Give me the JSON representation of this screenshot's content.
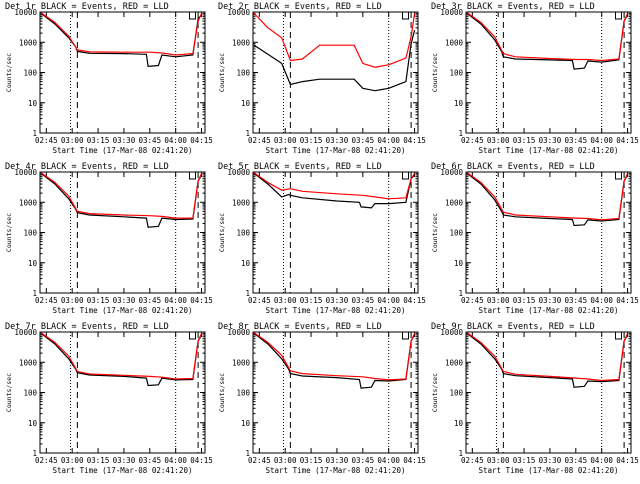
{
  "chart_data": [
    {
      "type": "line",
      "title": "Det 1r BLACK = Events, RED = LLD",
      "xlabel": "Start Time (17-Mar-08 02:41:20)",
      "ylabel": "Counts/sec",
      "x_ticks": [
        "02:45",
        "03:00",
        "03:15",
        "03:30",
        "03:45",
        "04:00",
        "04:15"
      ],
      "y_ticks": [
        "1",
        "10",
        "100",
        "1000",
        "10000"
      ],
      "ylim": [
        1,
        10000
      ],
      "log_y": true,
      "markers": {
        "dotted": [
          "02:59",
          "04:00"
        ],
        "dashed": [
          "03:03",
          "04:13"
        ],
        "flag": "04:08"
      },
      "series": [
        {
          "name": "BLACK",
          "color": "#000000",
          "x": [
            "02:42",
            "02:50",
            "02:58",
            "03:02",
            "03:03",
            "03:10",
            "03:30",
            "03:43",
            "03:44",
            "03:50",
            "03:52",
            "04:00",
            "04:10",
            "04:13",
            "04:15"
          ],
          "values": [
            9000,
            4000,
            1400,
            700,
            500,
            430,
            420,
            400,
            160,
            170,
            380,
            330,
            380,
            6000,
            8000
          ]
        },
        {
          "name": "RED",
          "color": "#ff0000",
          "x": [
            "02:42",
            "02:50",
            "02:58",
            "03:03",
            "03:10",
            "03:30",
            "03:45",
            "03:52",
            "04:00",
            "04:10",
            "04:13",
            "04:15"
          ],
          "values": [
            9500,
            4500,
            1600,
            560,
            480,
            470,
            470,
            440,
            380,
            420,
            5000,
            9000
          ]
        }
      ]
    },
    {
      "type": "line",
      "title": "Det 2r BLACK = Events, RED = LLD",
      "xlabel": "Start Time (17-Mar-08 02:41:20)",
      "ylabel": "Counts/sec",
      "x_ticks": [
        "02:45",
        "03:00",
        "03:15",
        "03:30",
        "03:45",
        "04:00",
        "04:15"
      ],
      "y_ticks": [
        "1",
        "10",
        "100",
        "1000",
        "10000"
      ],
      "ylim": [
        1,
        10000
      ],
      "log_y": true,
      "markers": {
        "dotted": [
          "02:59",
          "04:00"
        ],
        "dashed": [
          "03:03",
          "04:13"
        ],
        "flag": "04:08"
      },
      "series": [
        {
          "name": "BLACK",
          "color": "#000000",
          "x": [
            "02:42",
            "02:50",
            "02:58",
            "03:03",
            "03:10",
            "03:20",
            "03:40",
            "03:45",
            "03:52",
            "04:00",
            "04:10",
            "04:13",
            "04:15"
          ],
          "values": [
            800,
            400,
            200,
            40,
            50,
            60,
            60,
            30,
            25,
            30,
            50,
            900,
            2500
          ]
        },
        {
          "name": "RED",
          "color": "#ff0000",
          "x": [
            "02:42",
            "02:50",
            "02:58",
            "03:03",
            "03:10",
            "03:20",
            "03:40",
            "03:45",
            "03:52",
            "04:00",
            "04:10",
            "04:13",
            "04:15"
          ],
          "values": [
            9000,
            3000,
            1400,
            250,
            280,
            800,
            800,
            200,
            150,
            180,
            300,
            1500,
            9000
          ]
        }
      ]
    },
    {
      "type": "line",
      "title": "Det 3r BLACK = Events, RED = LLD",
      "xlabel": "Start Time (17-Mar-08 02:41:20)",
      "ylabel": "Counts/sec",
      "x_ticks": [
        "02:45",
        "03:00",
        "03:15",
        "03:30",
        "03:45",
        "04:00",
        "04:15"
      ],
      "y_ticks": [
        "1",
        "10",
        "100",
        "1000",
        "10000"
      ],
      "ylim": [
        1,
        10000
      ],
      "log_y": true,
      "markers": {
        "dotted": [
          "02:59",
          "04:00"
        ],
        "dashed": [
          "03:03",
          "04:13"
        ],
        "flag": "04:08"
      },
      "series": [
        {
          "name": "BLACK",
          "color": "#000000",
          "x": [
            "02:42",
            "02:50",
            "02:58",
            "03:02",
            "03:03",
            "03:10",
            "03:30",
            "03:43",
            "03:44",
            "03:50",
            "03:52",
            "04:00",
            "04:10",
            "04:13",
            "04:15"
          ],
          "values": [
            9000,
            4000,
            1200,
            500,
            330,
            280,
            260,
            250,
            130,
            140,
            240,
            220,
            260,
            5000,
            8000
          ]
        },
        {
          "name": "RED",
          "color": "#ff0000",
          "x": [
            "02:42",
            "02:50",
            "02:58",
            "03:03",
            "03:10",
            "03:30",
            "03:45",
            "03:52",
            "04:00",
            "04:10",
            "04:13",
            "04:15"
          ],
          "values": [
            9500,
            4500,
            1500,
            420,
            330,
            290,
            270,
            270,
            250,
            280,
            5000,
            9000
          ]
        }
      ]
    },
    {
      "type": "line",
      "title": "Det 4r BLACK = Events, RED = LLD",
      "xlabel": "Start Time (17-Mar-08 02:41:20)",
      "ylabel": "Counts/sec",
      "x_ticks": [
        "02:45",
        "03:00",
        "03:15",
        "03:30",
        "03:45",
        "04:00",
        "04:15"
      ],
      "y_ticks": [
        "1",
        "10",
        "100",
        "1000",
        "10000"
      ],
      "ylim": [
        1,
        10000
      ],
      "log_y": true,
      "markers": {
        "dotted": [
          "02:59",
          "04:00"
        ],
        "dashed": [
          "03:03",
          "04:13"
        ],
        "flag": "04:08"
      },
      "series": [
        {
          "name": "BLACK",
          "color": "#000000",
          "x": [
            "02:42",
            "02:50",
            "02:58",
            "03:02",
            "03:03",
            "03:10",
            "03:30",
            "03:43",
            "03:44",
            "03:50",
            "03:52",
            "04:00",
            "04:10",
            "04:13",
            "04:15"
          ],
          "values": [
            9000,
            4000,
            1300,
            600,
            450,
            380,
            330,
            300,
            150,
            160,
            300,
            270,
            280,
            5000,
            8000
          ]
        },
        {
          "name": "RED",
          "color": "#ff0000",
          "x": [
            "02:42",
            "02:50",
            "02:58",
            "03:03",
            "03:10",
            "03:30",
            "03:45",
            "03:52",
            "04:00",
            "04:10",
            "04:13",
            "04:15"
          ],
          "values": [
            9500,
            4500,
            1600,
            500,
            420,
            380,
            360,
            340,
            300,
            300,
            5000,
            9000
          ]
        }
      ]
    },
    {
      "type": "line",
      "title": "Det 5r BLACK = Events, RED = LLD",
      "xlabel": "Start Time (17-Mar-08 02:41:20)",
      "ylabel": "Counts/sec",
      "x_ticks": [
        "02:45",
        "03:00",
        "03:15",
        "03:30",
        "03:45",
        "04:00",
        "04:15"
      ],
      "y_ticks": [
        "1",
        "10",
        "100",
        "1000",
        "10000"
      ],
      "ylim": [
        1,
        10000
      ],
      "log_y": true,
      "markers": {
        "dotted": [
          "02:59",
          "04:00"
        ],
        "dashed": [
          "03:03",
          "04:13"
        ],
        "flag": "04:08"
      },
      "series": [
        {
          "name": "BLACK",
          "color": "#000000",
          "x": [
            "02:42",
            "02:50",
            "02:58",
            "03:02",
            "03:03",
            "03:10",
            "03:30",
            "03:43",
            "03:44",
            "03:50",
            "03:52",
            "04:00",
            "04:10",
            "04:13",
            "04:15"
          ],
          "values": [
            9000,
            4000,
            1500,
            1800,
            1700,
            1400,
            1100,
            1000,
            700,
            650,
            900,
            900,
            1000,
            6000,
            8000
          ]
        },
        {
          "name": "RED",
          "color": "#ff0000",
          "x": [
            "02:42",
            "02:50",
            "02:58",
            "03:03",
            "03:10",
            "03:30",
            "03:45",
            "03:52",
            "04:00",
            "04:10",
            "04:13",
            "04:15"
          ],
          "values": [
            9500,
            4500,
            2500,
            2800,
            2300,
            1900,
            1700,
            1500,
            1300,
            1400,
            6000,
            9000
          ]
        }
      ]
    },
    {
      "type": "line",
      "title": "Det 6r BLACK = Events, RED = LLD",
      "xlabel": "Start Time (17-Mar-08 02:41:20)",
      "ylabel": "Counts/sec",
      "x_ticks": [
        "02:45",
        "03:00",
        "03:15",
        "03:30",
        "03:45",
        "04:00",
        "04:15"
      ],
      "y_ticks": [
        "1",
        "10",
        "100",
        "1000",
        "10000"
      ],
      "ylim": [
        1,
        10000
      ],
      "log_y": true,
      "markers": {
        "dotted": [
          "02:59",
          "04:00"
        ],
        "dashed": [
          "03:03",
          "04:13"
        ],
        "flag": "04:08"
      },
      "series": [
        {
          "name": "BLACK",
          "color": "#000000",
          "x": [
            "02:42",
            "02:50",
            "02:58",
            "03:02",
            "03:03",
            "03:10",
            "03:30",
            "03:43",
            "03:44",
            "03:50",
            "03:52",
            "04:00",
            "04:10",
            "04:13",
            "04:15"
          ],
          "values": [
            9000,
            4000,
            1200,
            500,
            380,
            330,
            290,
            270,
            170,
            180,
            260,
            240,
            270,
            5000,
            8000
          ]
        },
        {
          "name": "RED",
          "color": "#ff0000",
          "x": [
            "02:42",
            "02:50",
            "02:58",
            "03:03",
            "03:10",
            "03:30",
            "03:45",
            "03:52",
            "04:00",
            "04:10",
            "04:13",
            "04:15"
          ],
          "values": [
            9500,
            4500,
            1500,
            470,
            380,
            330,
            300,
            290,
            260,
            290,
            5000,
            9000
          ]
        }
      ]
    },
    {
      "type": "line",
      "title": "Det 7r BLACK = Events, RED = LLD",
      "xlabel": "Start Time (17-Mar-08 02:41:20)",
      "ylabel": "Counts/sec",
      "x_ticks": [
        "02:45",
        "03:00",
        "03:15",
        "03:30",
        "03:45",
        "04:00",
        "04:15"
      ],
      "y_ticks": [
        "1",
        "10",
        "100",
        "1000",
        "10000"
      ],
      "ylim": [
        1,
        10000
      ],
      "log_y": true,
      "markers": {
        "dotted": [
          "02:59",
          "04:00"
        ],
        "dashed": [
          "03:03",
          "04:13"
        ],
        "flag": "04:08"
      },
      "series": [
        {
          "name": "BLACK",
          "color": "#000000",
          "x": [
            "02:42",
            "02:50",
            "02:58",
            "03:02",
            "03:03",
            "03:10",
            "03:30",
            "03:43",
            "03:44",
            "03:50",
            "03:52",
            "04:00",
            "04:10",
            "04:13",
            "04:15"
          ],
          "values": [
            9000,
            4000,
            1300,
            600,
            450,
            380,
            340,
            300,
            170,
            180,
            300,
            260,
            270,
            5000,
            8000
          ]
        },
        {
          "name": "RED",
          "color": "#ff0000",
          "x": [
            "02:42",
            "02:50",
            "02:58",
            "03:03",
            "03:10",
            "03:30",
            "03:45",
            "03:52",
            "04:00",
            "04:10",
            "04:13",
            "04:15"
          ],
          "values": [
            9500,
            4500,
            1600,
            500,
            410,
            370,
            340,
            320,
            280,
            290,
            5000,
            9000
          ]
        }
      ]
    },
    {
      "type": "line",
      "title": "Det 8r BLACK = Events, RED = LLD",
      "xlabel": "Start Time (17-Mar-08 02:41:20)",
      "ylabel": "Counts/sec",
      "x_ticks": [
        "02:45",
        "03:00",
        "03:15",
        "03:30",
        "03:45",
        "04:00",
        "04:15"
      ],
      "y_ticks": [
        "1",
        "10",
        "100",
        "1000",
        "10000"
      ],
      "ylim": [
        1,
        10000
      ],
      "log_y": true,
      "markers": {
        "dotted": [
          "02:59",
          "04:00"
        ],
        "dashed": [
          "03:03",
          "04:13"
        ],
        "flag": "04:08"
      },
      "series": [
        {
          "name": "BLACK",
          "color": "#000000",
          "x": [
            "02:42",
            "02:50",
            "02:58",
            "03:02",
            "03:03",
            "03:10",
            "03:30",
            "03:43",
            "03:44",
            "03:50",
            "03:52",
            "04:00",
            "04:10",
            "04:13",
            "04:15"
          ],
          "values": [
            9000,
            4000,
            1300,
            600,
            420,
            350,
            310,
            270,
            140,
            150,
            250,
            240,
            270,
            5000,
            8000
          ]
        },
        {
          "name": "RED",
          "color": "#ff0000",
          "x": [
            "02:42",
            "02:50",
            "02:58",
            "03:03",
            "03:10",
            "03:30",
            "03:45",
            "03:52",
            "04:00",
            "04:10",
            "04:13",
            "04:15"
          ],
          "values": [
            9500,
            4500,
            1700,
            520,
            420,
            360,
            330,
            290,
            260,
            280,
            5000,
            9000
          ]
        }
      ]
    },
    {
      "type": "line",
      "title": "Det 9r BLACK = Events, RED = LLD",
      "xlabel": "Start Time (17-Mar-08 02:41:20)",
      "ylabel": "Counts/sec",
      "x_ticks": [
        "02:45",
        "03:00",
        "03:15",
        "03:30",
        "03:45",
        "04:00",
        "04:15"
      ],
      "y_ticks": [
        "1",
        "10",
        "100",
        "1000",
        "10000"
      ],
      "ylim": [
        1,
        10000
      ],
      "log_y": true,
      "markers": {
        "dotted": [
          "02:59",
          "04:00"
        ],
        "dashed": [
          "03:03",
          "04:13"
        ],
        "flag": "04:08"
      },
      "series": [
        {
          "name": "BLACK",
          "color": "#000000",
          "x": [
            "02:42",
            "02:50",
            "02:58",
            "03:02",
            "03:03",
            "03:10",
            "03:30",
            "03:43",
            "03:44",
            "03:50",
            "03:52",
            "04:00",
            "04:10",
            "04:13",
            "04:15"
          ],
          "values": [
            9000,
            4000,
            1300,
            600,
            420,
            360,
            310,
            280,
            150,
            160,
            240,
            230,
            250,
            5000,
            8000
          ]
        },
        {
          "name": "RED",
          "color": "#ff0000",
          "x": [
            "02:42",
            "02:50",
            "02:58",
            "03:03",
            "03:10",
            "03:30",
            "03:45",
            "03:52",
            "04:00",
            "04:10",
            "04:13",
            "04:15"
          ],
          "values": [
            9500,
            4500,
            1600,
            500,
            400,
            340,
            300,
            280,
            250,
            270,
            5000,
            9000
          ]
        }
      ]
    }
  ]
}
